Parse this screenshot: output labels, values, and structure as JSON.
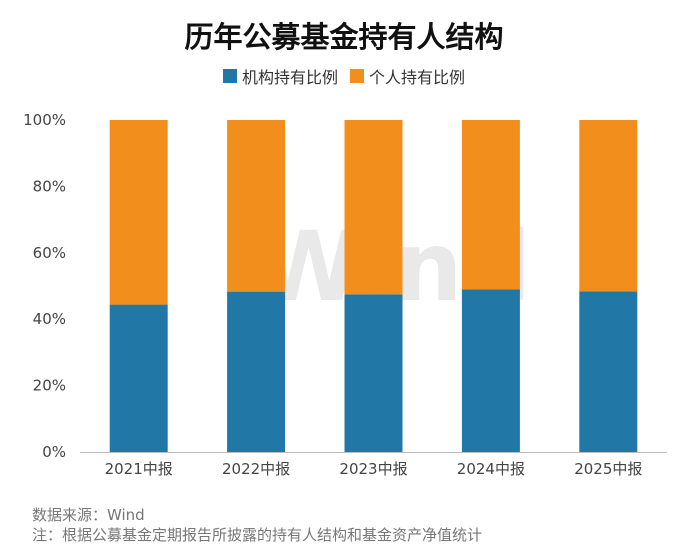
{
  "colors": {
    "institutional": "#2178a6",
    "individual": "#f28e1c",
    "axis_text": "#444444",
    "watermark": "#e9e9e9"
  },
  "watermark": "Wind",
  "source_line": "数据来源：Wind",
  "note_line": "注：根据公募基金定期报告所披露的持有人结构和基金资产净值统计",
  "chart_data": {
    "type": "bar",
    "stacked": true,
    "title": "历年公募基金持有人结构",
    "xlabel": "",
    "ylabel": "",
    "categories": [
      "2021中报",
      "2022中报",
      "2023中报",
      "2024中报",
      "2025中报"
    ],
    "series": [
      {
        "name": "机构持有比例",
        "values": [
          44.4,
          48.3,
          47.5,
          49.0,
          48.4
        ]
      },
      {
        "name": "个人持有比例",
        "values": [
          55.6,
          51.7,
          52.5,
          51.0,
          51.6
        ]
      }
    ],
    "ylim": [
      0,
      100
    ],
    "yticks": [
      "0%",
      "20%",
      "40%",
      "60%",
      "80%",
      "100%"
    ],
    "grid": false,
    "legend": "top-center"
  }
}
